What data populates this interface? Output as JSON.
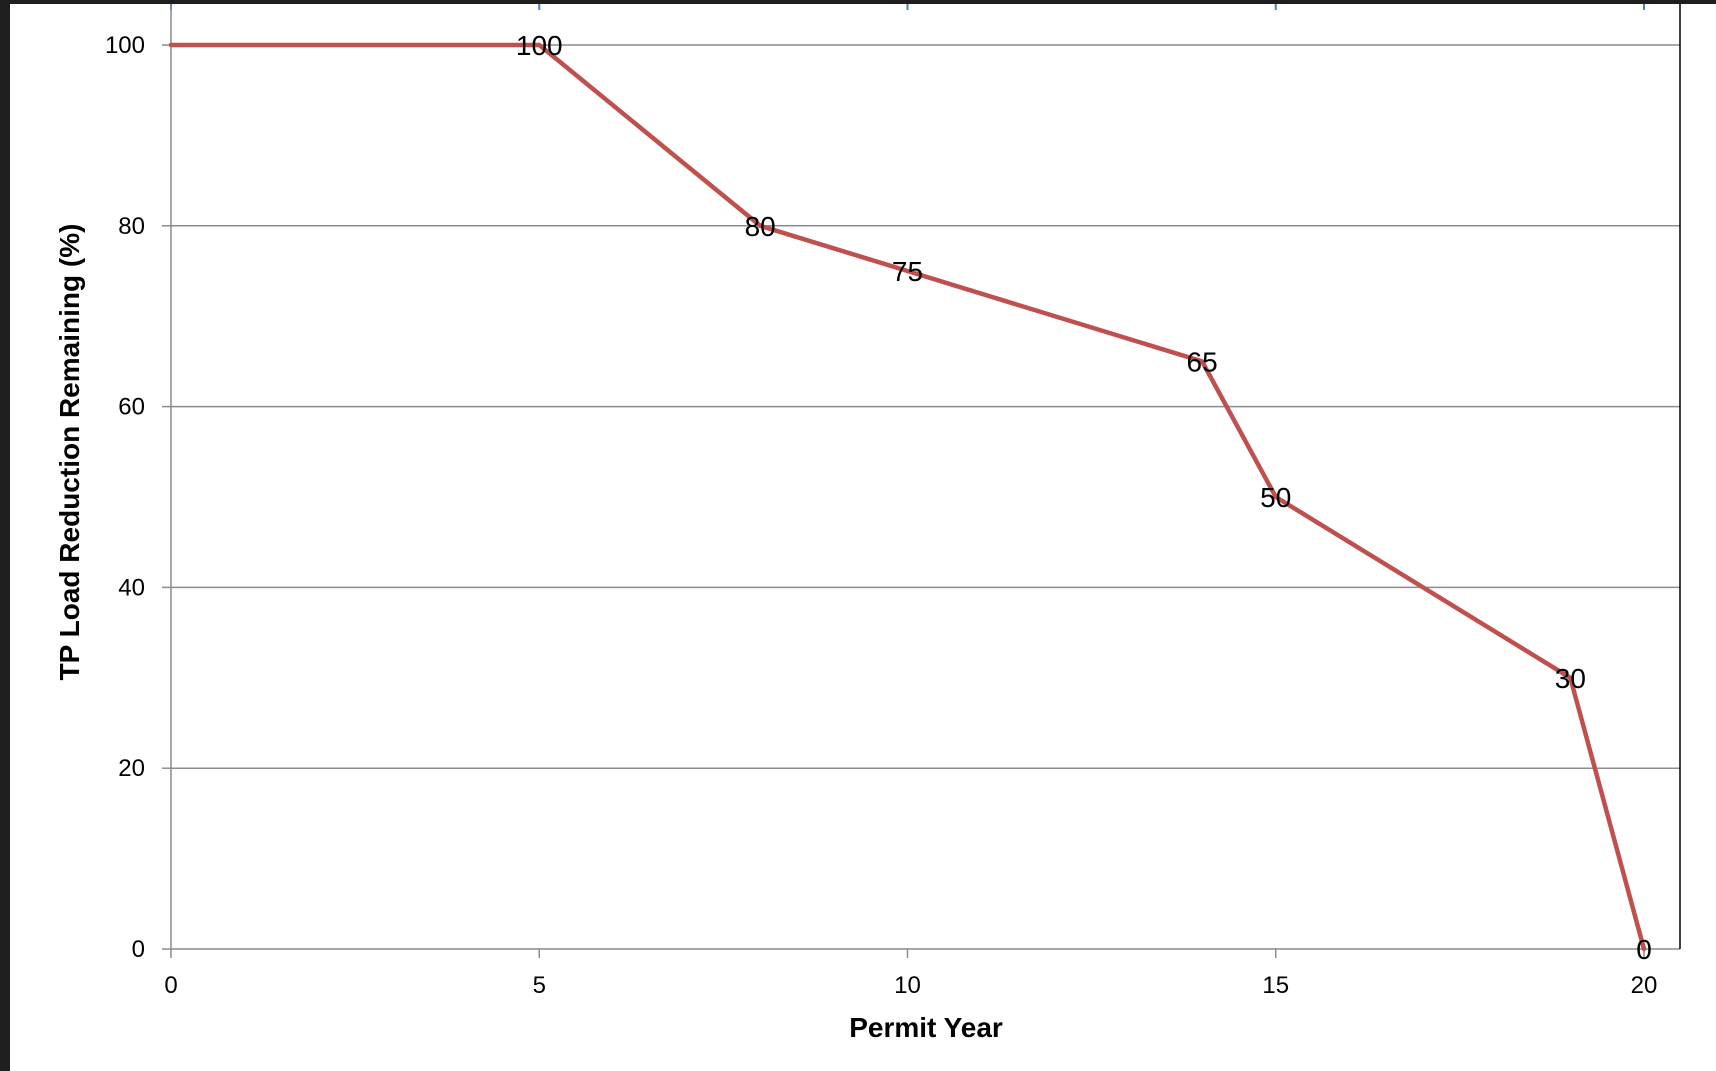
{
  "chart_data": {
    "type": "line",
    "title": "",
    "xlabel": "Permit Year",
    "ylabel": "TP Load Reduction Remaining (%)",
    "xlim": [
      0,
      20
    ],
    "ylim": [
      0,
      100
    ],
    "xticks": [
      "0",
      "5",
      "10",
      "15",
      "20"
    ],
    "yticks": [
      "0",
      "20",
      "40",
      "60",
      "80",
      "100"
    ],
    "grid": "horizontal",
    "legend": "none",
    "series": [
      {
        "color": "#c0504d",
        "points": [
          {
            "x": 0,
            "y": 100,
            "label": ""
          },
          {
            "x": 5,
            "y": 100,
            "label": "100"
          },
          {
            "x": 8,
            "y": 80,
            "label": "80"
          },
          {
            "x": 10,
            "y": 75,
            "label": "75"
          },
          {
            "x": 14,
            "y": 65,
            "label": "65"
          },
          {
            "x": 15,
            "y": 50,
            "label": "50"
          },
          {
            "x": 19,
            "y": 30,
            "label": "30"
          },
          {
            "x": 20,
            "y": 0,
            "label": "0"
          }
        ]
      }
    ]
  }
}
